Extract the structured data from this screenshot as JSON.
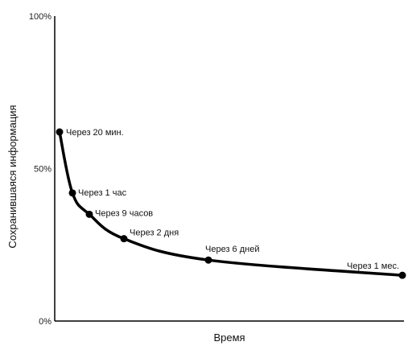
{
  "chart_data": {
    "type": "line",
    "title": "",
    "xlabel": "Время",
    "ylabel": "Сохранившаяся информация",
    "yticks": [
      "0%",
      "50%",
      "100%"
    ],
    "ylim": [
      0,
      100
    ],
    "grid": false,
    "series": [
      {
        "name": "",
        "color": "#000000",
        "points": [
          {
            "label": "Через 20 мин.",
            "y": 62
          },
          {
            "label": "Через 1 час",
            "y": 42
          },
          {
            "label": "Через 9 часов",
            "y": 35
          },
          {
            "label": "Через 2 дня",
            "y": 27
          },
          {
            "label": "Через 6 дней",
            "y": 20
          },
          {
            "label": "Через 1 мес.",
            "y": 15
          }
        ]
      }
    ]
  }
}
